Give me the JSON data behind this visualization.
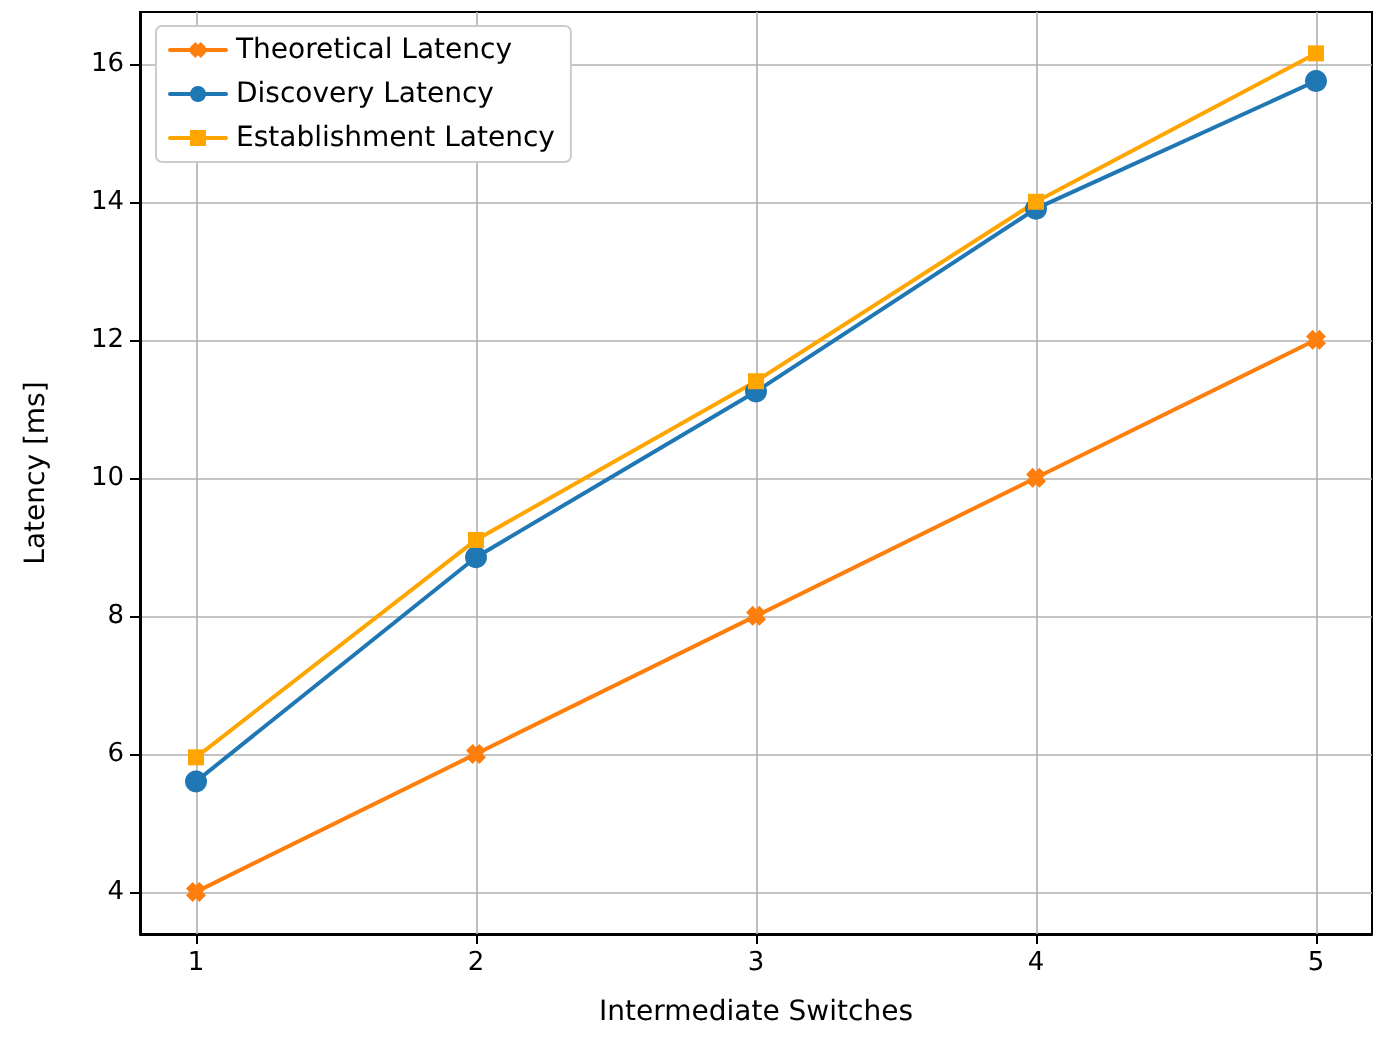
{
  "chart_data": {
    "type": "line",
    "xlabel": "Intermediate Switches",
    "ylabel": "Latency [ms]",
    "x": [
      1,
      2,
      3,
      4,
      5
    ],
    "series": [
      {
        "name": "Theoretical Latency",
        "color": "#ff7f0e",
        "marker": "cross",
        "values": [
          4,
          6,
          8,
          10,
          12
        ]
      },
      {
        "name": "Discovery Latency",
        "color": "#1f77b4",
        "marker": "circle",
        "values": [
          5.6,
          8.85,
          11.25,
          13.9,
          15.75
        ]
      },
      {
        "name": "Establishment Latency",
        "color": "#ffa500",
        "marker": "square",
        "values": [
          5.95,
          9.1,
          11.4,
          14.0,
          16.15
        ]
      }
    ],
    "xlim": [
      0.8,
      5.2
    ],
    "xticks": [
      1,
      2,
      3,
      4,
      5
    ],
    "ylim": [
      3.39,
      16.75
    ],
    "yticks": [
      4,
      6,
      8,
      10,
      12,
      14,
      16
    ],
    "grid": true,
    "legend": "top left",
    "line_style": "solid"
  }
}
